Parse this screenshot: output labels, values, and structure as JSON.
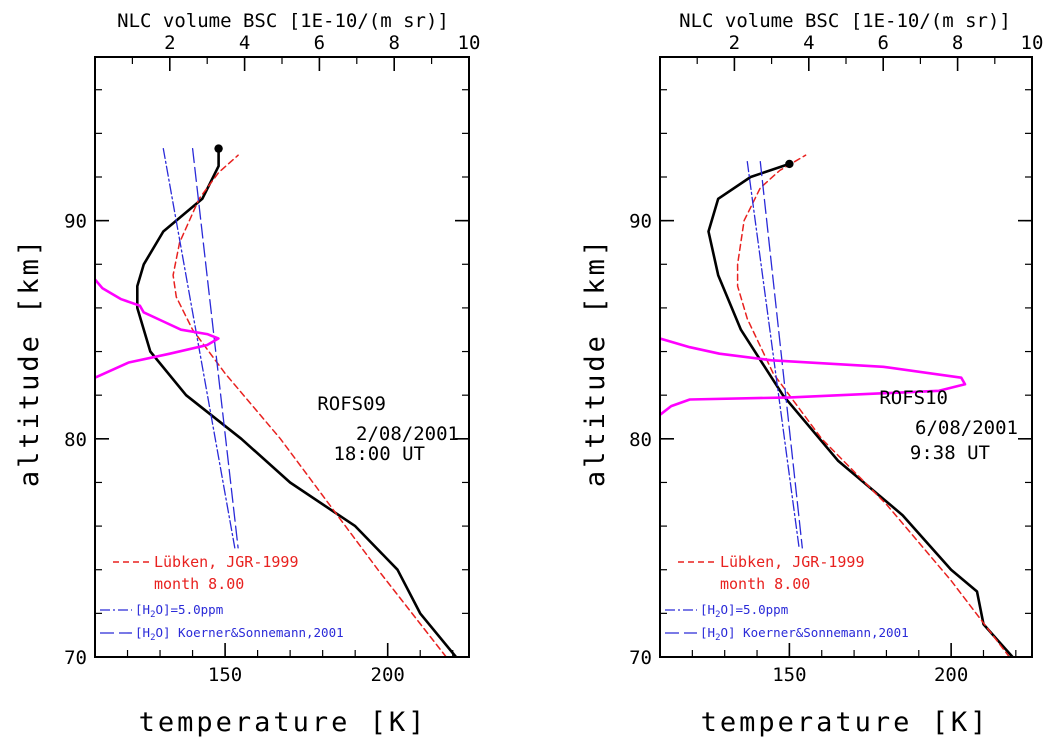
{
  "figure": {
    "top_axis_label": "NLC volume BSC [1E-10/(m sr)]",
    "ylabel": "altitude [km]",
    "xlabel": "temperature [K]"
  },
  "legend": {
    "model_line1": "Lübken, JGR-1999",
    "model_line2": "month 8.00",
    "h2o_const_prefix": "[H",
    "h2o_const_sub": "2",
    "h2o_const_suffix": "O]=5.0ppm",
    "h2o_model_prefix": "[H",
    "h2o_model_sub": "2",
    "h2o_model_suffix": "O] Koerner&Sonnemann,2001"
  },
  "colors": {
    "temperature": "#000000",
    "model": "#e8211f",
    "frost_point": "#2a2ad8",
    "bsc": "#ff00ff"
  },
  "chart_data": [
    {
      "type": "line",
      "info": [
        "ROFS09",
        "2/08/2001",
        "18:00 UT"
      ],
      "xlim": [
        110,
        225
      ],
      "ylim": [
        70,
        97.5
      ],
      "top_xlim": [
        0,
        10
      ],
      "x_ticks": [
        150,
        200
      ],
      "y_ticks": [
        70,
        80,
        90
      ],
      "top_ticks": [
        2,
        4,
        6,
        8,
        10
      ],
      "series": [
        {
          "key": "temperature",
          "axis": "bottom",
          "dash": "",
          "width": 2.6,
          "points": [
            [
              221,
              70
            ],
            [
              210,
              72
            ],
            [
              203,
              74
            ],
            [
              190,
              76
            ],
            [
              170,
              78
            ],
            [
              155,
              80
            ],
            [
              138,
              82
            ],
            [
              127,
              84
            ],
            [
              123,
              86
            ],
            [
              123,
              87
            ],
            [
              125,
              88
            ],
            [
              131,
              89.5
            ],
            [
              143,
              91
            ],
            [
              148,
              92.5
            ],
            [
              148,
              93.3
            ]
          ],
          "end_marker": true
        },
        {
          "key": "model",
          "axis": "bottom",
          "dash": "6,4",
          "width": 1.5,
          "points": [
            [
              218,
              70
            ],
            [
              197,
              74
            ],
            [
              182,
              77
            ],
            [
              167,
              80
            ],
            [
              150,
              83
            ],
            [
              140,
              85
            ],
            [
              135,
              86.5
            ],
            [
              134,
              87.5
            ],
            [
              136,
              89
            ],
            [
              142,
              91
            ],
            [
              148,
              92.2
            ],
            [
              154,
              93
            ]
          ]
        },
        {
          "key": "frost_point",
          "axis": "bottom",
          "dash": "10,3,2,3",
          "width": 1.3,
          "points": [
            [
              131,
              93.3
            ],
            [
              153,
              75
            ]
          ]
        },
        {
          "key": "frost_point",
          "axis": "bottom",
          "dash": "14,5",
          "width": 1.3,
          "points": [
            [
              140,
              93.3
            ],
            [
              154,
              75
            ]
          ]
        },
        {
          "key": "bsc",
          "axis": "top",
          "dash": "",
          "width": 2.6,
          "points": [
            [
              0,
              82.8
            ],
            [
              0.9,
              83.5
            ],
            [
              2,
              83.9
            ],
            [
              3.0,
              84.3
            ],
            [
              3.3,
              84.6
            ],
            [
              3.0,
              84.8
            ],
            [
              2.3,
              85
            ],
            [
              1.8,
              85.4
            ],
            [
              1.3,
              85.8
            ],
            [
              1.2,
              86.1
            ],
            [
              0.7,
              86.4
            ],
            [
              0.2,
              86.9
            ],
            [
              0,
              87.3
            ]
          ]
        }
      ]
    },
    {
      "type": "line",
      "info": [
        "ROFS10",
        "6/08/2001",
        "9:38 UT"
      ],
      "xlim": [
        110,
        225
      ],
      "ylim": [
        70,
        97.5
      ],
      "top_xlim": [
        0,
        10
      ],
      "x_ticks": [
        150,
        200
      ],
      "y_ticks": [
        70,
        80,
        90
      ],
      "top_ticks": [
        2,
        4,
        6,
        8,
        10
      ],
      "series": [
        {
          "key": "temperature",
          "axis": "bottom",
          "dash": "",
          "width": 2.6,
          "points": [
            [
              219,
              70
            ],
            [
              210,
              71.5
            ],
            [
              208,
              73
            ],
            [
              200,
              74
            ],
            [
              185,
              76.5
            ],
            [
              165,
              79
            ],
            [
              148,
              82
            ],
            [
              135,
              85
            ],
            [
              128,
              87.5
            ],
            [
              125,
              89.5
            ],
            [
              128,
              91
            ],
            [
              138,
              92
            ],
            [
              150,
              92.6
            ]
          ],
          "end_marker": true
        },
        {
          "key": "model",
          "axis": "bottom",
          "dash": "6,4",
          "width": 1.5,
          "points": [
            [
              218,
              70
            ],
            [
              200,
              73.5
            ],
            [
              180,
              77
            ],
            [
              160,
              80
            ],
            [
              145,
              83
            ],
            [
              137,
              85.5
            ],
            [
              134,
              87
            ],
            [
              134,
              88
            ],
            [
              136,
              90
            ],
            [
              141,
              91.5
            ],
            [
              147,
              92.3
            ],
            [
              155,
              93
            ]
          ]
        },
        {
          "key": "frost_point",
          "axis": "bottom",
          "dash": "10,3,2,3",
          "width": 1.3,
          "points": [
            [
              137,
              92.7
            ],
            [
              153,
              75
            ]
          ]
        },
        {
          "key": "frost_point",
          "axis": "bottom",
          "dash": "14,5",
          "width": 1.3,
          "points": [
            [
              141,
              92.7
            ],
            [
              154,
              75
            ]
          ]
        },
        {
          "key": "bsc",
          "axis": "top",
          "dash": "",
          "width": 2.6,
          "points": [
            [
              0,
              81.1
            ],
            [
              0.3,
              81.5
            ],
            [
              0.8,
              81.8
            ],
            [
              3.5,
              81.9
            ],
            [
              7.5,
              82.2
            ],
            [
              8.2,
              82.5
            ],
            [
              8.1,
              82.8
            ],
            [
              6.0,
              83.3
            ],
            [
              3.0,
              83.6
            ],
            [
              1.6,
              83.9
            ],
            [
              0.8,
              84.2
            ],
            [
              0,
              84.6
            ]
          ]
        }
      ]
    }
  ]
}
